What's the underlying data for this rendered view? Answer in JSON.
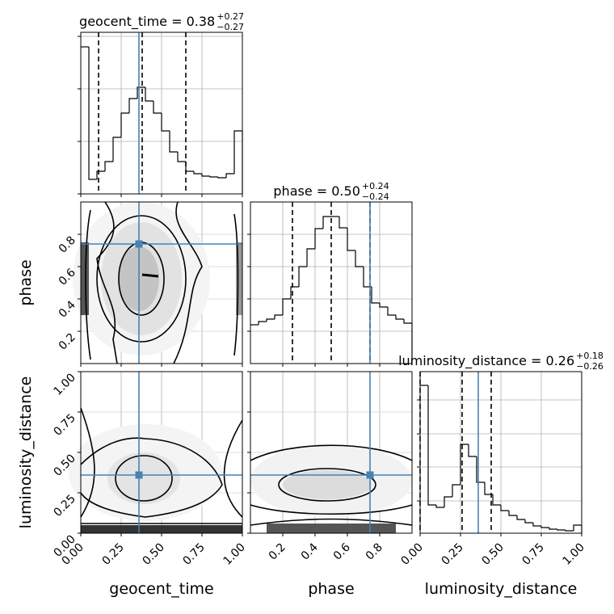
{
  "chart_data": {
    "type": "corner",
    "grid": true,
    "truth_color": "#4682b4",
    "parameters": [
      {
        "name": "geocent_time",
        "title": "geocent_time = 0.38",
        "title_upper": "+0.27",
        "title_lower": "−0.27",
        "lim": [
          0,
          1
        ],
        "ticks": [
          {
            "value": 0,
            "label": "0.00"
          },
          {
            "value": 0.25,
            "label": "0.25"
          },
          {
            "value": 0.5,
            "label": "0.50"
          },
          {
            "value": 0.75,
            "label": "0.75"
          },
          {
            "value": 1,
            "label": "1.00"
          }
        ],
        "truth": 0.36,
        "quantiles": [
          0.11,
          0.38,
          0.65
        ],
        "hist": {
          "bins": [
            0,
            0.05,
            0.1,
            0.15,
            0.2,
            0.25,
            0.3,
            0.35,
            0.4,
            0.45,
            0.5,
            0.55,
            0.6,
            0.65,
            0.7,
            0.75,
            0.8,
            0.85,
            0.9,
            0.95,
            1
          ],
          "values": [
            182,
            18,
            28,
            40,
            70,
            100,
            118,
            132,
            115,
            100,
            78,
            52,
            40,
            28,
            25,
            22,
            21,
            20,
            25,
            78
          ],
          "ylim": [
            0,
            200
          ],
          "yticks": [
            0,
            65,
            130,
            195
          ]
        }
      },
      {
        "name": "phase",
        "title": "phase = 0.50",
        "title_upper": "+0.24",
        "title_lower": "−0.24",
        "lim": [
          0,
          1
        ],
        "ticks": [
          0.2,
          0.4,
          0.6,
          0.8
        ],
        "truth": 0.74,
        "quantiles": [
          0.26,
          0.5,
          0.74
        ],
        "hist": {
          "bins": [
            0,
            0.05,
            0.1,
            0.15,
            0.2,
            0.25,
            0.3,
            0.35,
            0.4,
            0.45,
            0.5,
            0.55,
            0.6,
            0.65,
            0.7,
            0.75,
            0.8,
            0.85,
            0.9,
            0.95,
            1
          ],
          "values": [
            48,
            52,
            55,
            60,
            80,
            95,
            120,
            142,
            167,
            182,
            182,
            168,
            140,
            120,
            95,
            75,
            70,
            60,
            55,
            50
          ],
          "ylim": [
            0,
            200
          ],
          "yticks": [
            40,
            80,
            120,
            160
          ]
        }
      },
      {
        "name": "luminosity_distance",
        "title": "luminosity_distance = 0.26",
        "title_upper": "+0.18",
        "title_lower": "−0.26",
        "lim": [
          0,
          1
        ],
        "ticks": [
          {
            "value": 0,
            "label": "0.00"
          },
          {
            "value": 0.25,
            "label": "0.25"
          },
          {
            "value": 0.5,
            "label": "0.50"
          },
          {
            "value": 0.75,
            "label": "0.75"
          },
          {
            "value": 1,
            "label": "1.00"
          }
        ],
        "truth": 0.36,
        "quantiles": [
          0,
          0.26,
          0.44
        ],
        "hist": {
          "bins": [
            0,
            0.05,
            0.1,
            0.15,
            0.2,
            0.25,
            0.3,
            0.35,
            0.4,
            0.45,
            0.5,
            0.55,
            0.6,
            0.65,
            0.7,
            0.75,
            0.8,
            0.85,
            0.9,
            0.95,
            1
          ],
          "values": [
            183,
            35,
            32,
            45,
            60,
            110,
            95,
            63,
            48,
            35,
            28,
            22,
            17,
            13,
            9,
            7,
            5,
            4,
            3,
            10
          ],
          "ylim": [
            0,
            200
          ],
          "yticks": [
            40,
            82,
            123,
            165
          ]
        }
      }
    ]
  }
}
